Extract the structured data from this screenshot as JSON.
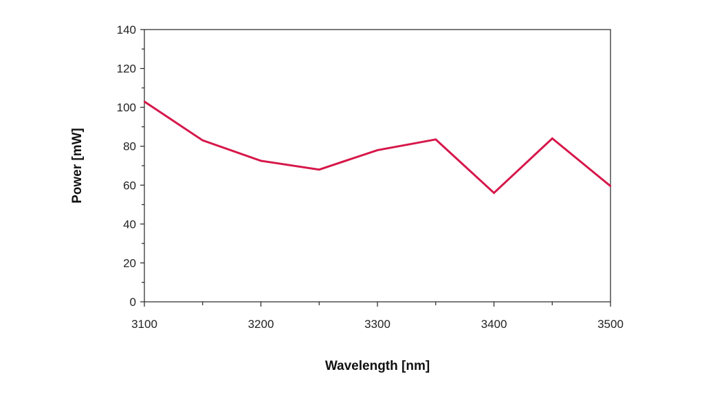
{
  "chart_data": {
    "type": "line",
    "title": "",
    "xlabel": "Wavelength [nm]",
    "ylabel": "Power [mW]",
    "xlim": [
      3100,
      3500
    ],
    "ylim": [
      0,
      140
    ],
    "x_ticks": [
      3100,
      3200,
      3300,
      3400,
      3500
    ],
    "x_minor_ticks": [
      3150,
      3250,
      3350,
      3450
    ],
    "y_ticks": [
      0,
      20,
      40,
      60,
      80,
      100,
      120,
      140
    ],
    "y_minor_ticks": [
      10,
      30,
      50,
      70,
      90,
      110,
      130
    ],
    "grid": false,
    "legend": "none",
    "series": [
      {
        "color": "#d6174a",
        "x": [
          3100,
          3150,
          3200,
          3250,
          3300,
          3350,
          3400,
          3450,
          3500
        ],
        "y": [
          103,
          83,
          72.5,
          68,
          78,
          83.5,
          56,
          84,
          59.5
        ]
      }
    ]
  }
}
